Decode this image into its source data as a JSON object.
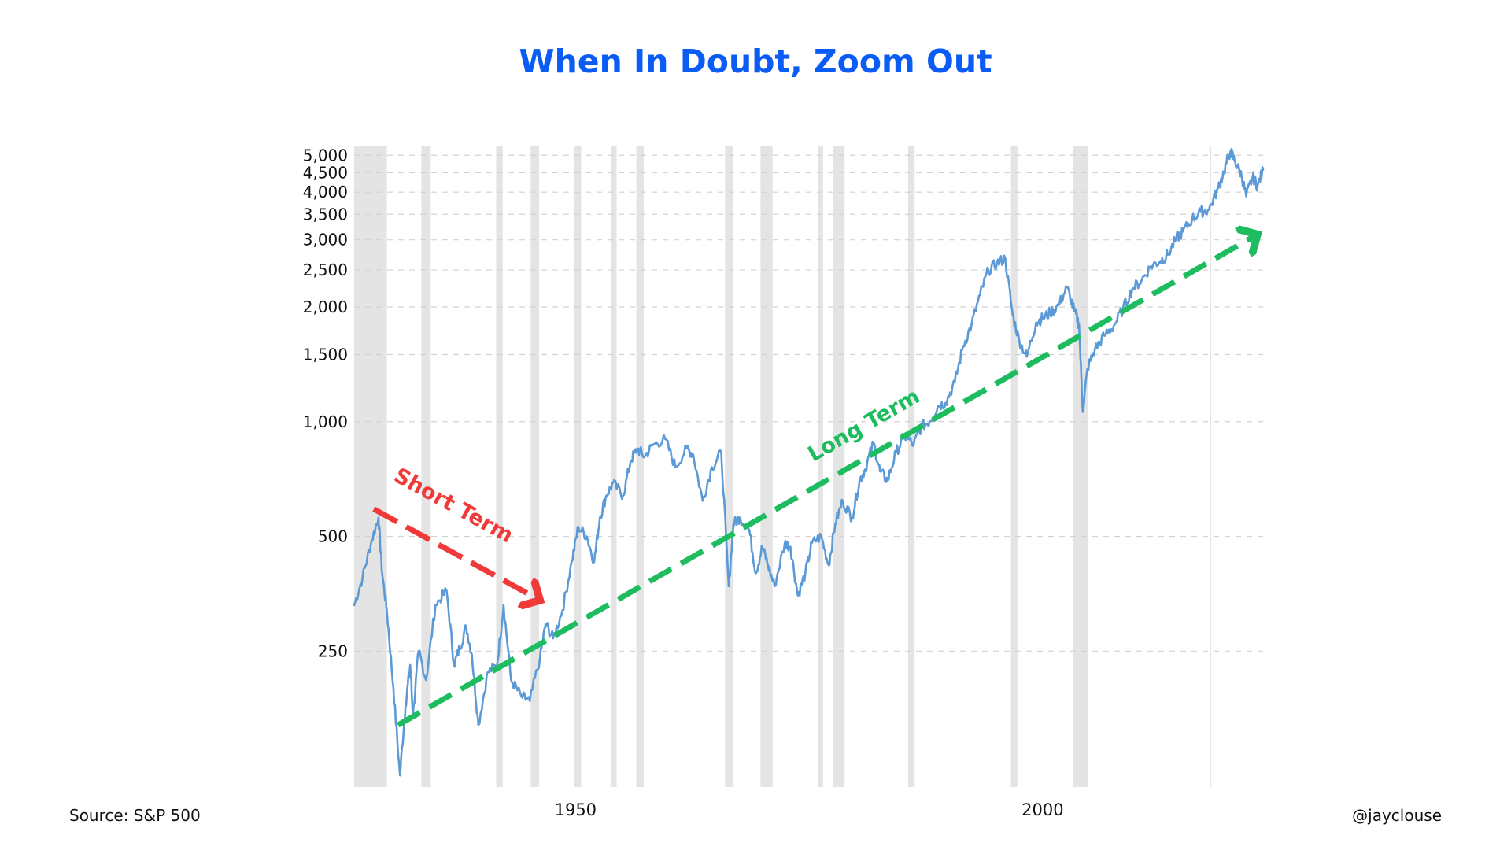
{
  "colors": {
    "title": "#0a5cf5",
    "series_line": "#5b9ad6",
    "recession_band": "#e4e4e4",
    "gridline": "#d2d2d2",
    "short_term_arrow": "#f03a3a",
    "long_term_arrow": "#1dbc5e"
  },
  "footer": {
    "source": "Source: S&P 500",
    "handle": "@jayclouse"
  },
  "chart_data": {
    "type": "line",
    "title": "When In Doubt, Zoom Out",
    "xlabel": "",
    "ylabel": "",
    "y_scale": "log",
    "ylim": [
      110,
      5300
    ],
    "xlim": [
      1926.3,
      2023.6
    ],
    "grid": true,
    "y_ticks": [
      250,
      500,
      1000,
      1500,
      2000,
      2500,
      3000,
      3500,
      4000,
      4500,
      5000
    ],
    "y_tick_labels": [
      "250",
      "500",
      "1,000",
      "1,500",
      "2,000",
      "2,500",
      "3,000",
      "3,500",
      "4,000",
      "4,500",
      "5,000"
    ],
    "x_ticks": [
      1950,
      2000
    ],
    "x_tick_labels": [
      "1950",
      "2000"
    ],
    "recessions": [
      [
        1926.3,
        1929.8
      ],
      [
        1933.5,
        1934.5
      ],
      [
        1941.5,
        1942.2
      ],
      [
        1945.2,
        1946.1
      ],
      [
        1949.8,
        1950.6
      ],
      [
        1953.8,
        1954.4
      ],
      [
        1956.5,
        1957.3
      ],
      [
        1966.0,
        1966.9
      ],
      [
        1969.8,
        1971.1
      ],
      [
        1976.0,
        1976.5
      ],
      [
        1977.6,
        1978.8
      ],
      [
        1985.6,
        1986.3
      ],
      [
        1996.6,
        1997.3
      ],
      [
        2003.3,
        2004.9
      ]
    ],
    "series": [
      {
        "x": [
          1926.3,
          1927.2,
          1928.1,
          1928.9,
          1929.3,
          1929.8,
          1930.5,
          1931.2,
          1931.8,
          1932.3,
          1932.6,
          1933.2,
          1934.0,
          1935.0,
          1936.2,
          1937.0,
          1937.6,
          1938.3,
          1938.9,
          1939.6,
          1940.6,
          1941.6,
          1942.3,
          1943.1,
          1944.2,
          1945.1,
          1946.2,
          1946.8,
          1947.6,
          1948.6,
          1949.6,
          1950.3,
          1951.2,
          1952.0,
          1952.6,
          1953.3,
          1954.0,
          1955.1,
          1955.9,
          1956.6,
          1957.4,
          1958.3,
          1959.6,
          1960.7,
          1961.9,
          1962.6,
          1963.6,
          1964.6,
          1965.6,
          1966.4,
          1966.9,
          1967.6,
          1968.6,
          1969.3,
          1970.0,
          1970.6,
          1971.3,
          1972.4,
          1973.0,
          1973.8,
          1974.6,
          1975.3,
          1976.3,
          1977.1,
          1977.8,
          1978.6,
          1979.6,
          1980.4,
          1981.0,
          1981.9,
          1982.6,
          1983.4,
          1984.3,
          1985.2,
          1986.2,
          1987.0,
          1987.9,
          1988.8,
          1989.6,
          1990.6,
          1991.5,
          1992.4,
          1993.3,
          1994.2,
          1995.1,
          1996.0,
          1996.8,
          1997.5,
          1998.3,
          1999.3,
          2000.0,
          2000.8,
          2001.7,
          2002.6,
          2003.4,
          2003.9,
          2004.3,
          2004.8,
          2005.6,
          2006.6,
          2007.6,
          2008.6,
          2009.6,
          2010.6,
          2011.6,
          2012.6,
          2013.4,
          2014.3,
          2015.0,
          2016.0,
          2016.9,
          2017.8,
          2018.8,
          2019.4,
          2020.1,
          2020.6,
          2021.3,
          2021.8,
          2022.5,
          2023.0,
          2023.6
        ],
        "values": [
          330,
          390,
          480,
          560,
          400,
          320,
          200,
          118,
          180,
          230,
          170,
          250,
          210,
          330,
          360,
          230,
          255,
          290,
          245,
          160,
          220,
          230,
          330,
          210,
          190,
          185,
          240,
          295,
          270,
          320,
          430,
          530,
          500,
          430,
          560,
          640,
          690,
          640,
          790,
          850,
          810,
          870,
          900,
          760,
          850,
          820,
          620,
          760,
          830,
          370,
          540,
          560,
          520,
          400,
          470,
          420,
          370,
          480,
          470,
          350,
          400,
          480,
          500,
          420,
          540,
          620,
          560,
          700,
          750,
          880,
          740,
          700,
          830,
          920,
          870,
          970,
          1000,
          1100,
          1120,
          1270,
          1580,
          1800,
          2150,
          2500,
          2600,
          2680,
          1900,
          1630,
          1480,
          1820,
          1870,
          1930,
          2020,
          2250,
          1950,
          1800,
          1060,
          1380,
          1550,
          1680,
          1780,
          1980,
          2230,
          2350,
          2560,
          2640,
          2740,
          3020,
          3150,
          3400,
          3550,
          3600,
          4100,
          4530,
          5120,
          4820,
          4420,
          3900,
          4400,
          4150,
          4580
        ],
        "color": "#5b9ad6"
      }
    ],
    "annotations": [
      {
        "text": "Short Term",
        "from": [
          1928.4,
          590
        ],
        "to": [
          1946.2,
          340
        ],
        "color": "#f03a3a"
      },
      {
        "text": "Long Term",
        "from": [
          1931.0,
          160
        ],
        "to": [
          2023.0,
          3100
        ],
        "color": "#1dbc5e"
      }
    ]
  }
}
